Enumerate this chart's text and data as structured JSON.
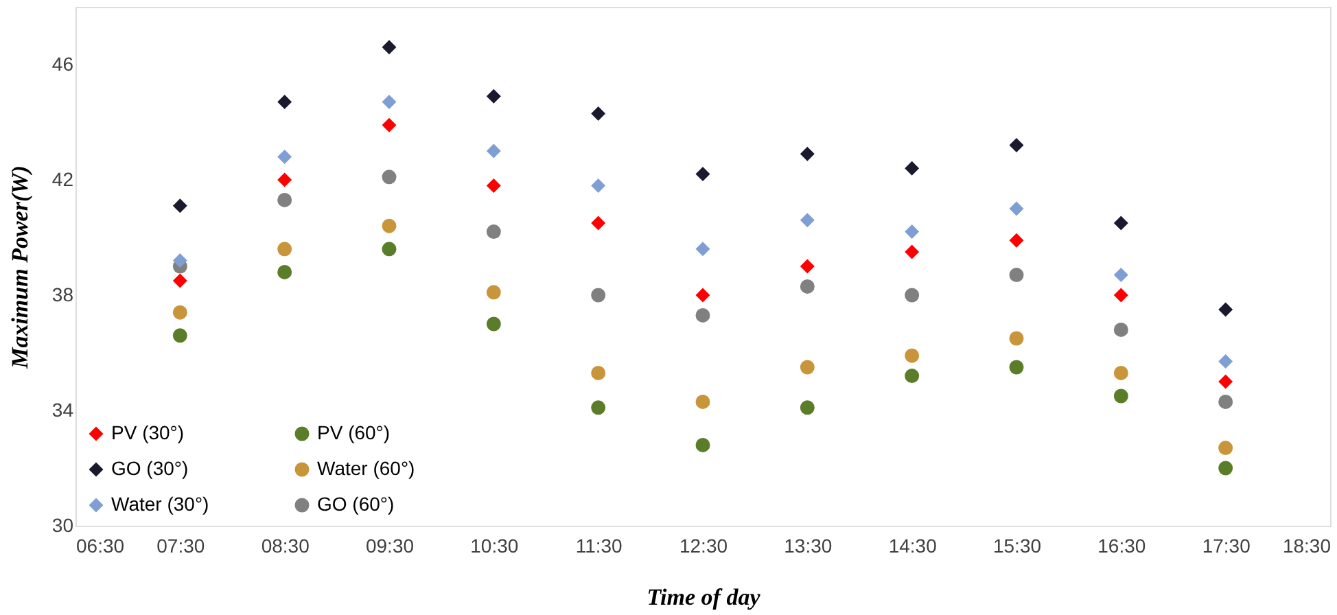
{
  "chart_data": {
    "type": "scatter",
    "xlabel": "Time of day",
    "ylabel": "Maximum Power(W)",
    "x": [
      7.5,
      8.5,
      9.5,
      10.5,
      11.5,
      12.5,
      13.5,
      14.5,
      15.5,
      16.5,
      17.5
    ],
    "xlim": [
      6.5,
      18.5
    ],
    "xticks": [
      {
        "value": 6.5,
        "label": "06:30"
      },
      {
        "value": 7.5,
        "label": "07:30"
      },
      {
        "value": 8.5,
        "label": "08:30"
      },
      {
        "value": 9.5,
        "label": "09:30"
      },
      {
        "value": 10.5,
        "label": "10:30"
      },
      {
        "value": 11.5,
        "label": "11:30"
      },
      {
        "value": 12.5,
        "label": "12:30"
      },
      {
        "value": 13.5,
        "label": "13:30"
      },
      {
        "value": 14.5,
        "label": "14:30"
      },
      {
        "value": 15.5,
        "label": "15:30"
      },
      {
        "value": 16.5,
        "label": "16:30"
      },
      {
        "value": 17.5,
        "label": "17:30"
      },
      {
        "value": 18.5,
        "label": "18:30"
      }
    ],
    "ylim": [
      30,
      48
    ],
    "yticks": [
      30,
      34,
      38,
      42,
      46
    ],
    "grid": false,
    "legend": "bottom left",
    "series": [
      {
        "name": "PV (30°)",
        "color": "#ff0000",
        "marker": "diamond",
        "values": [
          38.5,
          42.0,
          43.9,
          41.8,
          40.5,
          38.0,
          39.0,
          39.5,
          39.9,
          38.0,
          35.0
        ]
      },
      {
        "name": "GO (30°)",
        "color": "#1a1a2e",
        "marker": "diamond",
        "values": [
          41.1,
          44.7,
          46.6,
          44.9,
          44.3,
          42.2,
          42.9,
          42.4,
          43.2,
          40.5,
          37.5
        ]
      },
      {
        "name": "Water (30°)",
        "color": "#7f9fd4",
        "marker": "diamond",
        "values": [
          39.2,
          42.8,
          44.7,
          43.0,
          41.8,
          39.6,
          40.6,
          40.2,
          41.0,
          38.7,
          35.7
        ]
      },
      {
        "name": "PV (60°)",
        "color": "#5a7d2a",
        "marker": "circle",
        "values": [
          36.6,
          38.8,
          39.6,
          37.0,
          34.1,
          32.8,
          34.1,
          35.2,
          35.5,
          34.5,
          32.0
        ]
      },
      {
        "name": "Water (60°)",
        "color": "#c9953a",
        "marker": "circle",
        "values": [
          37.4,
          39.6,
          40.4,
          38.1,
          35.3,
          34.3,
          35.5,
          35.9,
          36.5,
          35.3,
          32.7
        ]
      },
      {
        "name": "GO (60°)",
        "color": "#808080",
        "marker": "circle",
        "values": [
          39.0,
          41.3,
          42.1,
          40.2,
          38.0,
          37.3,
          38.3,
          38.0,
          38.7,
          36.8,
          34.3
        ]
      }
    ]
  }
}
